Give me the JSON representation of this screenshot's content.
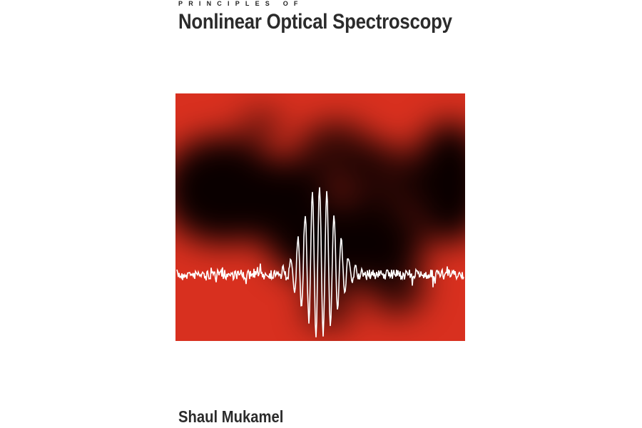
{
  "cover": {
    "series_label": "PRINCIPLES OF",
    "title": "Nonlinear Optical Spectroscopy",
    "author": "Shaul Mukamel"
  },
  "colors": {
    "background": "#ffffff",
    "text": "#2b2b2b",
    "art_red": "#d8301f",
    "art_dark": "#0a0000",
    "waveform": "#ffffff"
  }
}
